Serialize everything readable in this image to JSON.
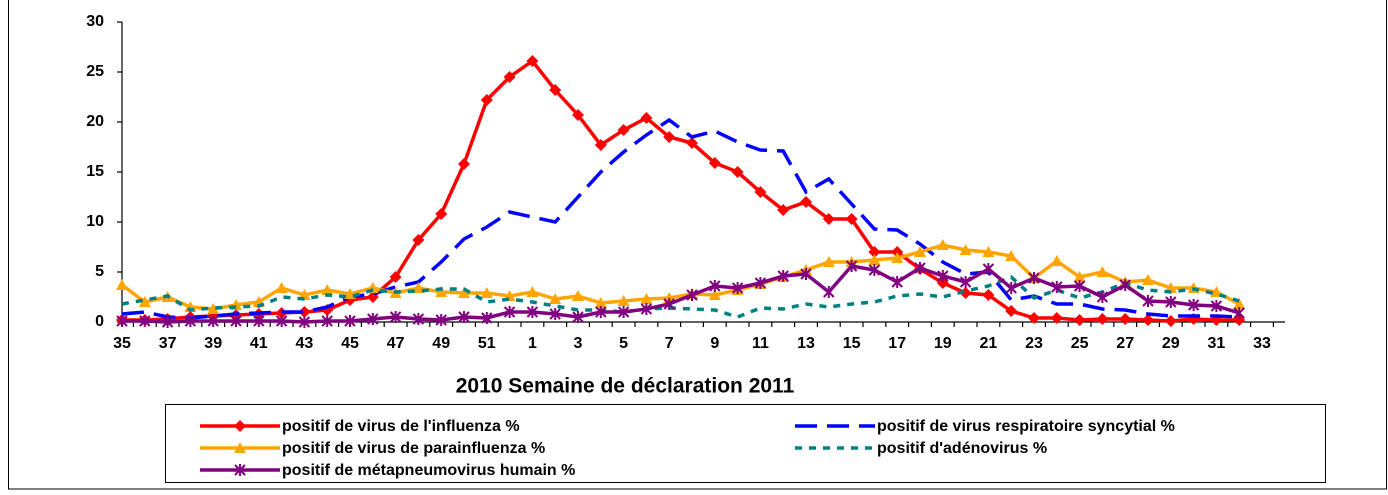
{
  "chart_data": {
    "type": "line",
    "x_label": "2010  Semaine de déclaration  2011",
    "categories": [
      "35",
      null,
      "37",
      null,
      "39",
      null,
      "41",
      null,
      "43",
      null,
      "45",
      null,
      "47",
      null,
      "49",
      null,
      "51",
      null,
      "1",
      null,
      "3",
      null,
      "5",
      null,
      "7",
      null,
      "9",
      null,
      "11",
      null,
      "13",
      null,
      "15",
      null,
      "17",
      null,
      "19",
      null,
      "21",
      null,
      "23",
      null,
      "25",
      null,
      "27",
      null,
      "29",
      null,
      "31",
      null,
      "33"
    ],
    "ylim": [
      0,
      30
    ],
    "yticks": [
      0,
      5,
      10,
      15,
      20,
      25,
      30
    ],
    "grid": false,
    "legend": "bottom",
    "series": [
      {
        "name": "positif de virus de l'influenza %",
        "color": "#ff0000",
        "marker": "diamond",
        "linestyle": "solid",
        "values": [
          0.2,
          0.2,
          0.3,
          0.5,
          0.6,
          0.7,
          0.8,
          0.9,
          1.0,
          1.2,
          2.2,
          2.5,
          4.5,
          8.2,
          10.8,
          15.8,
          22.2,
          24.5,
          26.1,
          23.2,
          20.7,
          17.7,
          19.2,
          20.4,
          18.5,
          17.9,
          15.9,
          15.0,
          13.0,
          11.2,
          12.0,
          10.3,
          10.3,
          7.0,
          7.0,
          5.3,
          3.9,
          2.9,
          2.7,
          1.1,
          0.4,
          0.4,
          0.2,
          0.3,
          0.3,
          0.2,
          0.1,
          0.3,
          0.2,
          0.2,
          null
        ]
      },
      {
        "name": "positif de virus respiratoire syncytial %",
        "color": "#0000ff",
        "marker": "none",
        "linestyle": "dashed",
        "values": [
          0.8,
          1.0,
          0.5,
          0.4,
          0.6,
          0.8,
          0.9,
          1.0,
          1.0,
          1.5,
          2.5,
          2.8,
          3.5,
          4.0,
          6.0,
          8.3,
          9.5,
          11.0,
          10.5,
          10.0,
          12.5,
          15.0,
          17.0,
          18.7,
          20.2,
          18.5,
          19.1,
          18.0,
          17.2,
          17.1,
          13.0,
          14.3,
          11.8,
          9.3,
          9.2,
          7.8,
          6.0,
          4.8,
          5.0,
          2.2,
          2.6,
          1.8,
          1.8,
          1.3,
          1.2,
          0.8,
          0.6,
          0.6,
          0.6,
          0.5,
          null
        ]
      },
      {
        "name": "positif de virus de parainfluenza %",
        "color": "#ffa500",
        "marker": "triangle",
        "linestyle": "solid",
        "values": [
          3.7,
          2.0,
          2.5,
          1.5,
          1.3,
          1.7,
          2.0,
          3.4,
          2.7,
          3.2,
          2.8,
          3.4,
          2.9,
          3.4,
          3.0,
          2.9,
          2.9,
          2.6,
          3.0,
          2.3,
          2.6,
          1.9,
          2.1,
          2.3,
          2.4,
          2.8,
          2.7,
          3.2,
          3.8,
          4.5,
          5.2,
          6.0,
          6.0,
          6.2,
          6.4,
          7.0,
          7.7,
          7.2,
          7.0,
          6.6,
          4.4,
          6.1,
          4.5,
          5.0,
          4.0,
          4.2,
          3.4,
          3.4,
          3.0,
          1.8,
          null
        ]
      },
      {
        "name": "positif d'adénovirus %",
        "color": "#008080",
        "marker": "none",
        "linestyle": "dotted",
        "values": [
          1.8,
          2.2,
          2.6,
          1.2,
          1.4,
          1.5,
          1.6,
          2.5,
          2.3,
          2.7,
          2.5,
          3.2,
          3.0,
          3.1,
          3.3,
          3.3,
          2.0,
          2.3,
          2.0,
          1.6,
          1.2,
          1.2,
          1.0,
          1.3,
          1.4,
          1.3,
          1.2,
          0.5,
          1.4,
          1.3,
          1.8,
          1.5,
          1.8,
          2.0,
          2.6,
          2.8,
          2.5,
          3.1,
          3.6,
          4.5,
          2.4,
          3.2,
          2.4,
          3.0,
          3.9,
          3.2,
          3.0,
          3.3,
          2.8,
          2.1,
          null
        ]
      },
      {
        "name": "positif de métapneumovirus humain %",
        "color": "#800080",
        "marker": "star",
        "linestyle": "solid",
        "values": [
          0.1,
          0.1,
          0.0,
          0.1,
          0.1,
          0.1,
          0.1,
          0.1,
          0.0,
          0.1,
          0.1,
          0.3,
          0.5,
          0.3,
          0.2,
          0.5,
          0.4,
          1.0,
          1.0,
          0.8,
          0.5,
          1.0,
          1.0,
          1.3,
          1.8,
          2.7,
          3.6,
          3.4,
          3.9,
          4.6,
          4.8,
          3.0,
          5.6,
          5.2,
          4.0,
          5.4,
          4.6,
          4.0,
          5.3,
          3.4,
          4.4,
          3.5,
          3.6,
          2.5,
          3.7,
          2.1,
          2.0,
          1.7,
          1.6,
          0.9,
          null
        ]
      }
    ]
  }
}
